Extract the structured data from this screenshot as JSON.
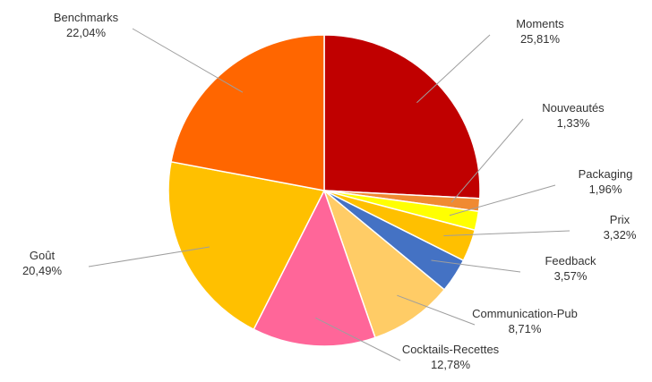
{
  "chart_data": {
    "type": "pie",
    "title": "",
    "slices": [
      {
        "label": "Moments",
        "value": 25.81,
        "value_label": "25,81%",
        "color": "#C00000"
      },
      {
        "label": "Nouveautés",
        "value": 1.33,
        "value_label": "1,33%",
        "color": "#F08A32"
      },
      {
        "label": "Packaging",
        "value": 1.96,
        "value_label": "1,96%",
        "color": "#FFFF00"
      },
      {
        "label": "Prix",
        "value": 3.32,
        "value_label": "3,32%",
        "color": "#FFC000"
      },
      {
        "label": "Feedback",
        "value": 3.57,
        "value_label": "3,57%",
        "color": "#4472C4"
      },
      {
        "label": "Communication-Pub",
        "value": 8.71,
        "value_label": "8,71%",
        "color": "#FFCC66"
      },
      {
        "label": "Cocktails-Recettes",
        "value": 12.78,
        "value_label": "12,78%",
        "color": "#FF6699"
      },
      {
        "label": "Goût",
        "value": 20.49,
        "value_label": "20,49%",
        "color": "#FFC000"
      },
      {
        "label": "Benchmarks",
        "value": 22.04,
        "value_label": "22,04%",
        "color": "#FF6600"
      }
    ],
    "start_angle_deg": 0,
    "direction": "clockwise",
    "labels": "outside with leader lines",
    "legend": "none"
  }
}
